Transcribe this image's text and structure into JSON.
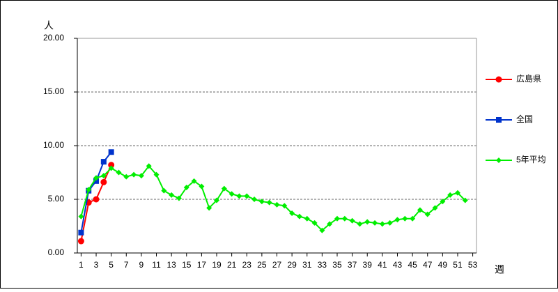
{
  "chart_data": {
    "type": "line",
    "y_label": "人",
    "x_label": "週",
    "x": [
      1,
      2,
      3,
      4,
      5,
      6,
      7,
      8,
      9,
      10,
      11,
      12,
      13,
      14,
      15,
      16,
      17,
      18,
      19,
      20,
      21,
      22,
      23,
      24,
      25,
      26,
      27,
      28,
      29,
      30,
      31,
      32,
      33,
      34,
      35,
      36,
      37,
      38,
      39,
      40,
      41,
      42,
      43,
      44,
      45,
      46,
      47,
      48,
      49,
      50,
      51,
      52,
      53
    ],
    "xlim": [
      0.5,
      53.5
    ],
    "xticks": [
      1,
      3,
      5,
      7,
      9,
      11,
      13,
      15,
      17,
      19,
      21,
      23,
      25,
      27,
      29,
      31,
      33,
      35,
      37,
      39,
      41,
      43,
      45,
      47,
      49,
      51,
      53
    ],
    "ylim": [
      0,
      20
    ],
    "yticks": [
      {
        "value": 0,
        "label": "0.00"
      },
      {
        "value": 5,
        "label": "5.00"
      },
      {
        "value": 10,
        "label": "10.00"
      },
      {
        "value": 15,
        "label": "15.00"
      },
      {
        "value": 20,
        "label": "20.00"
      }
    ],
    "grid": true,
    "legend": "right",
    "series": [
      {
        "name": "広島県",
        "color": "#ff0000",
        "marker": "circle",
        "values": [
          1.1,
          4.7,
          5.0,
          6.6,
          8.2,
          null,
          null,
          null,
          null,
          null,
          null,
          null,
          null,
          null,
          null,
          null,
          null,
          null,
          null,
          null,
          null,
          null,
          null,
          null,
          null,
          null,
          null,
          null,
          null,
          null,
          null,
          null,
          null,
          null,
          null,
          null,
          null,
          null,
          null,
          null,
          null,
          null,
          null,
          null,
          null,
          null,
          null,
          null,
          null,
          null,
          null,
          null,
          null
        ]
      },
      {
        "name": "全国",
        "color": "#0033cc",
        "marker": "square",
        "values": [
          1.9,
          5.8,
          6.7,
          8.5,
          9.4,
          null,
          null,
          null,
          null,
          null,
          null,
          null,
          null,
          null,
          null,
          null,
          null,
          null,
          null,
          null,
          null,
          null,
          null,
          null,
          null,
          null,
          null,
          null,
          null,
          null,
          null,
          null,
          null,
          null,
          null,
          null,
          null,
          null,
          null,
          null,
          null,
          null,
          null,
          null,
          null,
          null,
          null,
          null,
          null,
          null,
          null,
          null,
          null
        ]
      },
      {
        "name": "5年平均",
        "color": "#00ee00",
        "marker": "diamond",
        "values": [
          3.4,
          5.9,
          7.0,
          7.2,
          7.9,
          7.5,
          7.1,
          7.3,
          7.2,
          8.1,
          7.3,
          5.8,
          5.4,
          5.1,
          6.1,
          6.7,
          6.2,
          4.2,
          4.9,
          6.0,
          5.5,
          5.3,
          5.3,
          5.0,
          4.8,
          4.7,
          4.5,
          4.4,
          3.7,
          3.4,
          3.2,
          2.8,
          2.1,
          2.7,
          3.2,
          3.2,
          3.0,
          2.7,
          2.9,
          2.8,
          2.7,
          2.8,
          3.1,
          3.2,
          3.2,
          4.0,
          3.6,
          4.2,
          4.8,
          5.4,
          5.6,
          4.9,
          null
        ]
      }
    ]
  }
}
